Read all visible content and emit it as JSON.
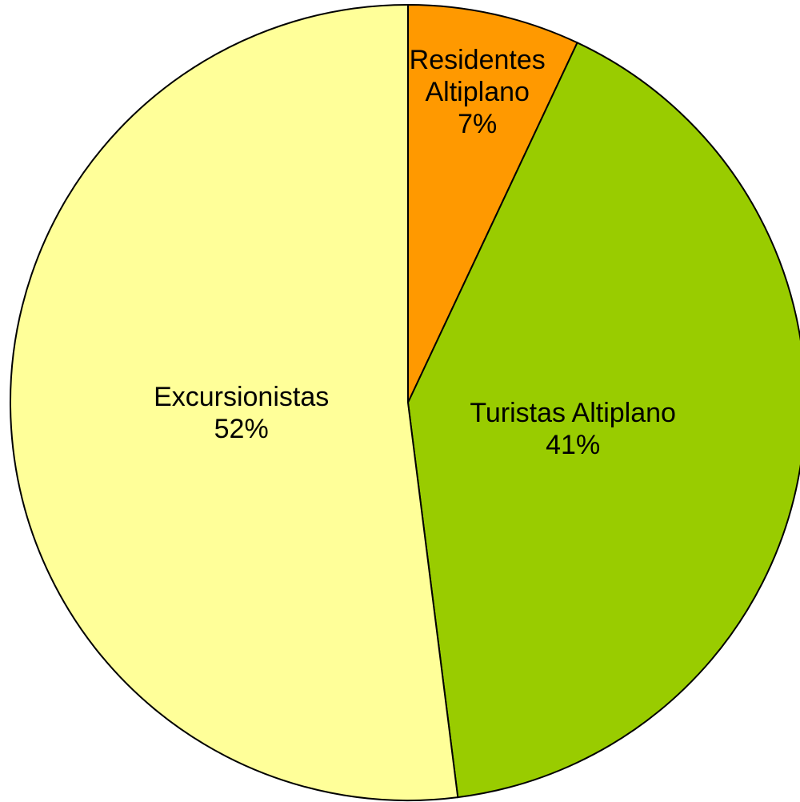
{
  "chart_data": {
    "type": "pie",
    "categories": [
      "Residentes Altiplano",
      "Turistas Altiplano",
      "Excursionistas"
    ],
    "values": [
      7,
      41,
      52
    ],
    "value_labels": [
      "7%",
      "41%",
      "52%"
    ],
    "colors": [
      "#ff9900",
      "#99cc00",
      "#ffff99"
    ]
  }
}
